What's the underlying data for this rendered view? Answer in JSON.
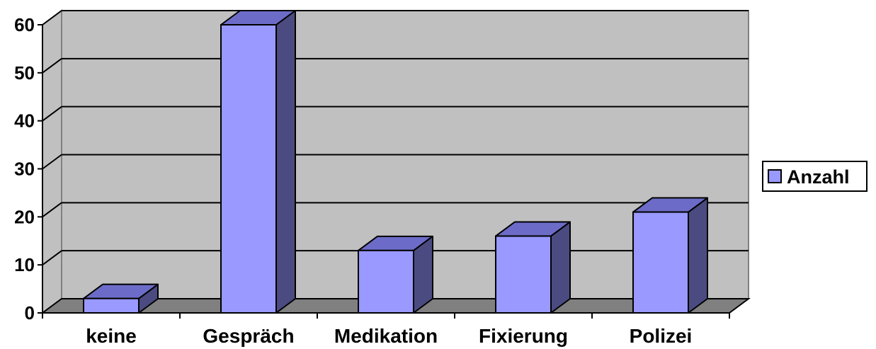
{
  "chart_data": {
    "type": "bar",
    "categories": [
      "keine",
      "Gespräch",
      "Medikation",
      "Fixierung",
      "Polizei"
    ],
    "series": [
      {
        "name": "Anzahl",
        "values": [
          3,
          60,
          13,
          16,
          21
        ]
      }
    ],
    "title": "",
    "xlabel": "",
    "ylabel": "",
    "ylim": [
      0,
      60
    ],
    "yticks": [
      "0",
      "10",
      "20",
      "30",
      "40",
      "50",
      "60"
    ],
    "grid": true,
    "three_d": true,
    "legend_position": "right",
    "colors": {
      "bar_front": "#9999ff",
      "bar_side": "#4b4b82",
      "bar_top": "#6c6cc8",
      "wall": "#c0c0c0",
      "floor": "#808080",
      "gridline": "#000000"
    }
  }
}
